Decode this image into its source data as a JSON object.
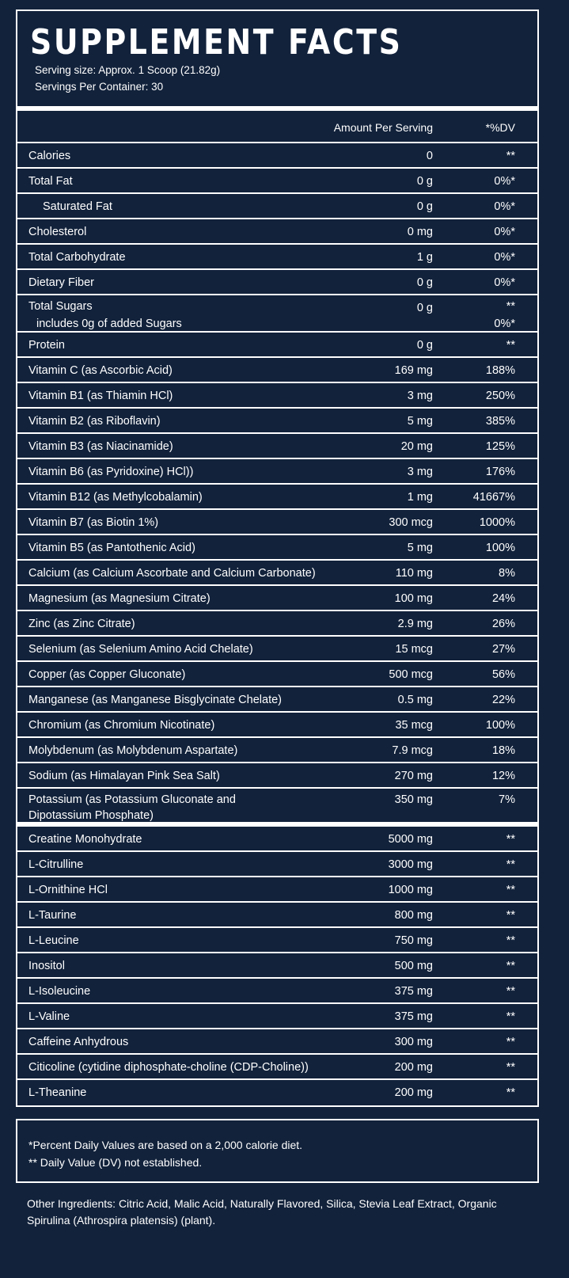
{
  "header": {
    "title": "SUPPLEMENT FACTS",
    "serving_size": "Serving size: Approx. 1 Scoop (21.82g)",
    "servings_per_container": "Servings Per Container: 30"
  },
  "table_header": {
    "amount": "Amount Per Serving",
    "dv": "*%DV"
  },
  "rows": [
    {
      "name": "Calories",
      "amount": "0",
      "dv": "**"
    },
    {
      "name": "Total Fat",
      "amount": "0 g",
      "dv": "0%*"
    },
    {
      "name": "Saturated Fat",
      "amount": "0 g",
      "dv": "0%*"
    },
    {
      "name": "Cholesterol",
      "amount": "0 mg",
      "dv": "0%*"
    },
    {
      "name": "Total Carbohydrate",
      "amount": "1 g",
      "dv": "0%*"
    },
    {
      "name": "Dietary Fiber",
      "amount": "0 g",
      "dv": "0%*"
    },
    {
      "name": "Total Sugars",
      "name2": "includes 0g of added Sugars",
      "amount": "0 g",
      "dv": "**",
      "dv2": "0%*"
    },
    {
      "name": "Protein",
      "amount": "0 g",
      "dv": "**"
    },
    {
      "name": "Vitamin C (as Ascorbic Acid)",
      "amount": "169 mg",
      "dv": "188%"
    },
    {
      "name": "Vitamin B1 (as Thiamin HCl)",
      "amount": "3 mg",
      "dv": "250%"
    },
    {
      "name": "Vitamin B2 (as Riboflavin)",
      "amount": "5 mg",
      "dv": "385%"
    },
    {
      "name": "Vitamin B3 (as Niacinamide)",
      "amount": "20 mg",
      "dv": "125%"
    },
    {
      "name": "Vitamin B6 (as Pyridoxine) HCl))",
      "amount": "3 mg",
      "dv": "176%"
    },
    {
      "name": "Vitamin B12 (as Methylcobalamin)",
      "amount": "1 mg",
      "dv": "41667%"
    },
    {
      "name": "Vitamin B7 (as Biotin 1%)",
      "amount": "300 mcg",
      "dv": "1000%"
    },
    {
      "name": "Vitamin B5 (as Pantothenic Acid)",
      "amount": "5 mg",
      "dv": "100%"
    },
    {
      "name": "Calcium (as Calcium Ascorbate and Calcium Carbonate)",
      "amount": "110 mg",
      "dv": "8%"
    },
    {
      "name": "Magnesium (as Magnesium Citrate)",
      "amount": "100 mg",
      "dv": "24%"
    },
    {
      "name": "Zinc (as Zinc Citrate)",
      "amount": "2.9 mg",
      "dv": "26%"
    },
    {
      "name": "Selenium (as Selenium Amino Acid Chelate)",
      "amount": "15 mcg",
      "dv": "27%"
    },
    {
      "name": "Copper (as Copper Gluconate)",
      "amount": "500 mcg",
      "dv": "56%"
    },
    {
      "name": "Manganese (as Manganese Bisglycinate Chelate)",
      "amount": "0.5 mg",
      "dv": "22%"
    },
    {
      "name": "Chromium (as Chromium Nicotinate)",
      "amount": "35 mcg",
      "dv": "100%"
    },
    {
      "name": "Molybdenum (as Molybdenum Aspartate)",
      "amount": "7.9 mcg",
      "dv": "18%"
    },
    {
      "name": "Sodium (as Himalayan Pink Sea Salt)",
      "amount": "270 mg",
      "dv": "12%"
    },
    {
      "name": "Potassium (as Potassium Gluconate and Dipotassium Phosphate)",
      "amount": "350 mg",
      "dv": "7%"
    },
    {
      "name": "Creatine Monohydrate",
      "amount": "5000 mg",
      "dv": "**"
    },
    {
      "name": "L-Citrulline",
      "amount": "3000 mg",
      "dv": "**"
    },
    {
      "name": "L-Ornithine HCl",
      "amount": "1000 mg",
      "dv": "**"
    },
    {
      "name": "L-Taurine",
      "amount": "800 mg",
      "dv": "**"
    },
    {
      "name": "L-Leucine",
      "amount": "750 mg",
      "dv": "**"
    },
    {
      "name": "Inositol",
      "amount": "500 mg",
      "dv": "**"
    },
    {
      "name": "L-Isoleucine",
      "amount": "375 mg",
      "dv": "**"
    },
    {
      "name": "L-Valine",
      "amount": "375 mg",
      "dv": "**"
    },
    {
      "name": "Caffeine Anhydrous",
      "amount": "300 mg",
      "dv": "**"
    },
    {
      "name": "Citicoline (cytidine diphosphate-choline (CDP-Choline))",
      "amount": "200 mg",
      "dv": "**"
    },
    {
      "name": "L-Theanine",
      "amount": "200 mg",
      "dv": "**"
    }
  ],
  "footnotes": {
    "line1": "*Percent Daily Values are based on a 2,000 calorie diet.",
    "line2": "** Daily Value (DV) not established."
  },
  "other_ingredients": "Other Ingredients: Citric Acid, Malic Acid, Naturally Flavored, Silica, Stevia Leaf Extract, Organic Spirulina (Athrospira platensis) (plant).",
  "colors": {
    "background": "#12223b",
    "foreground": "#ffffff"
  }
}
